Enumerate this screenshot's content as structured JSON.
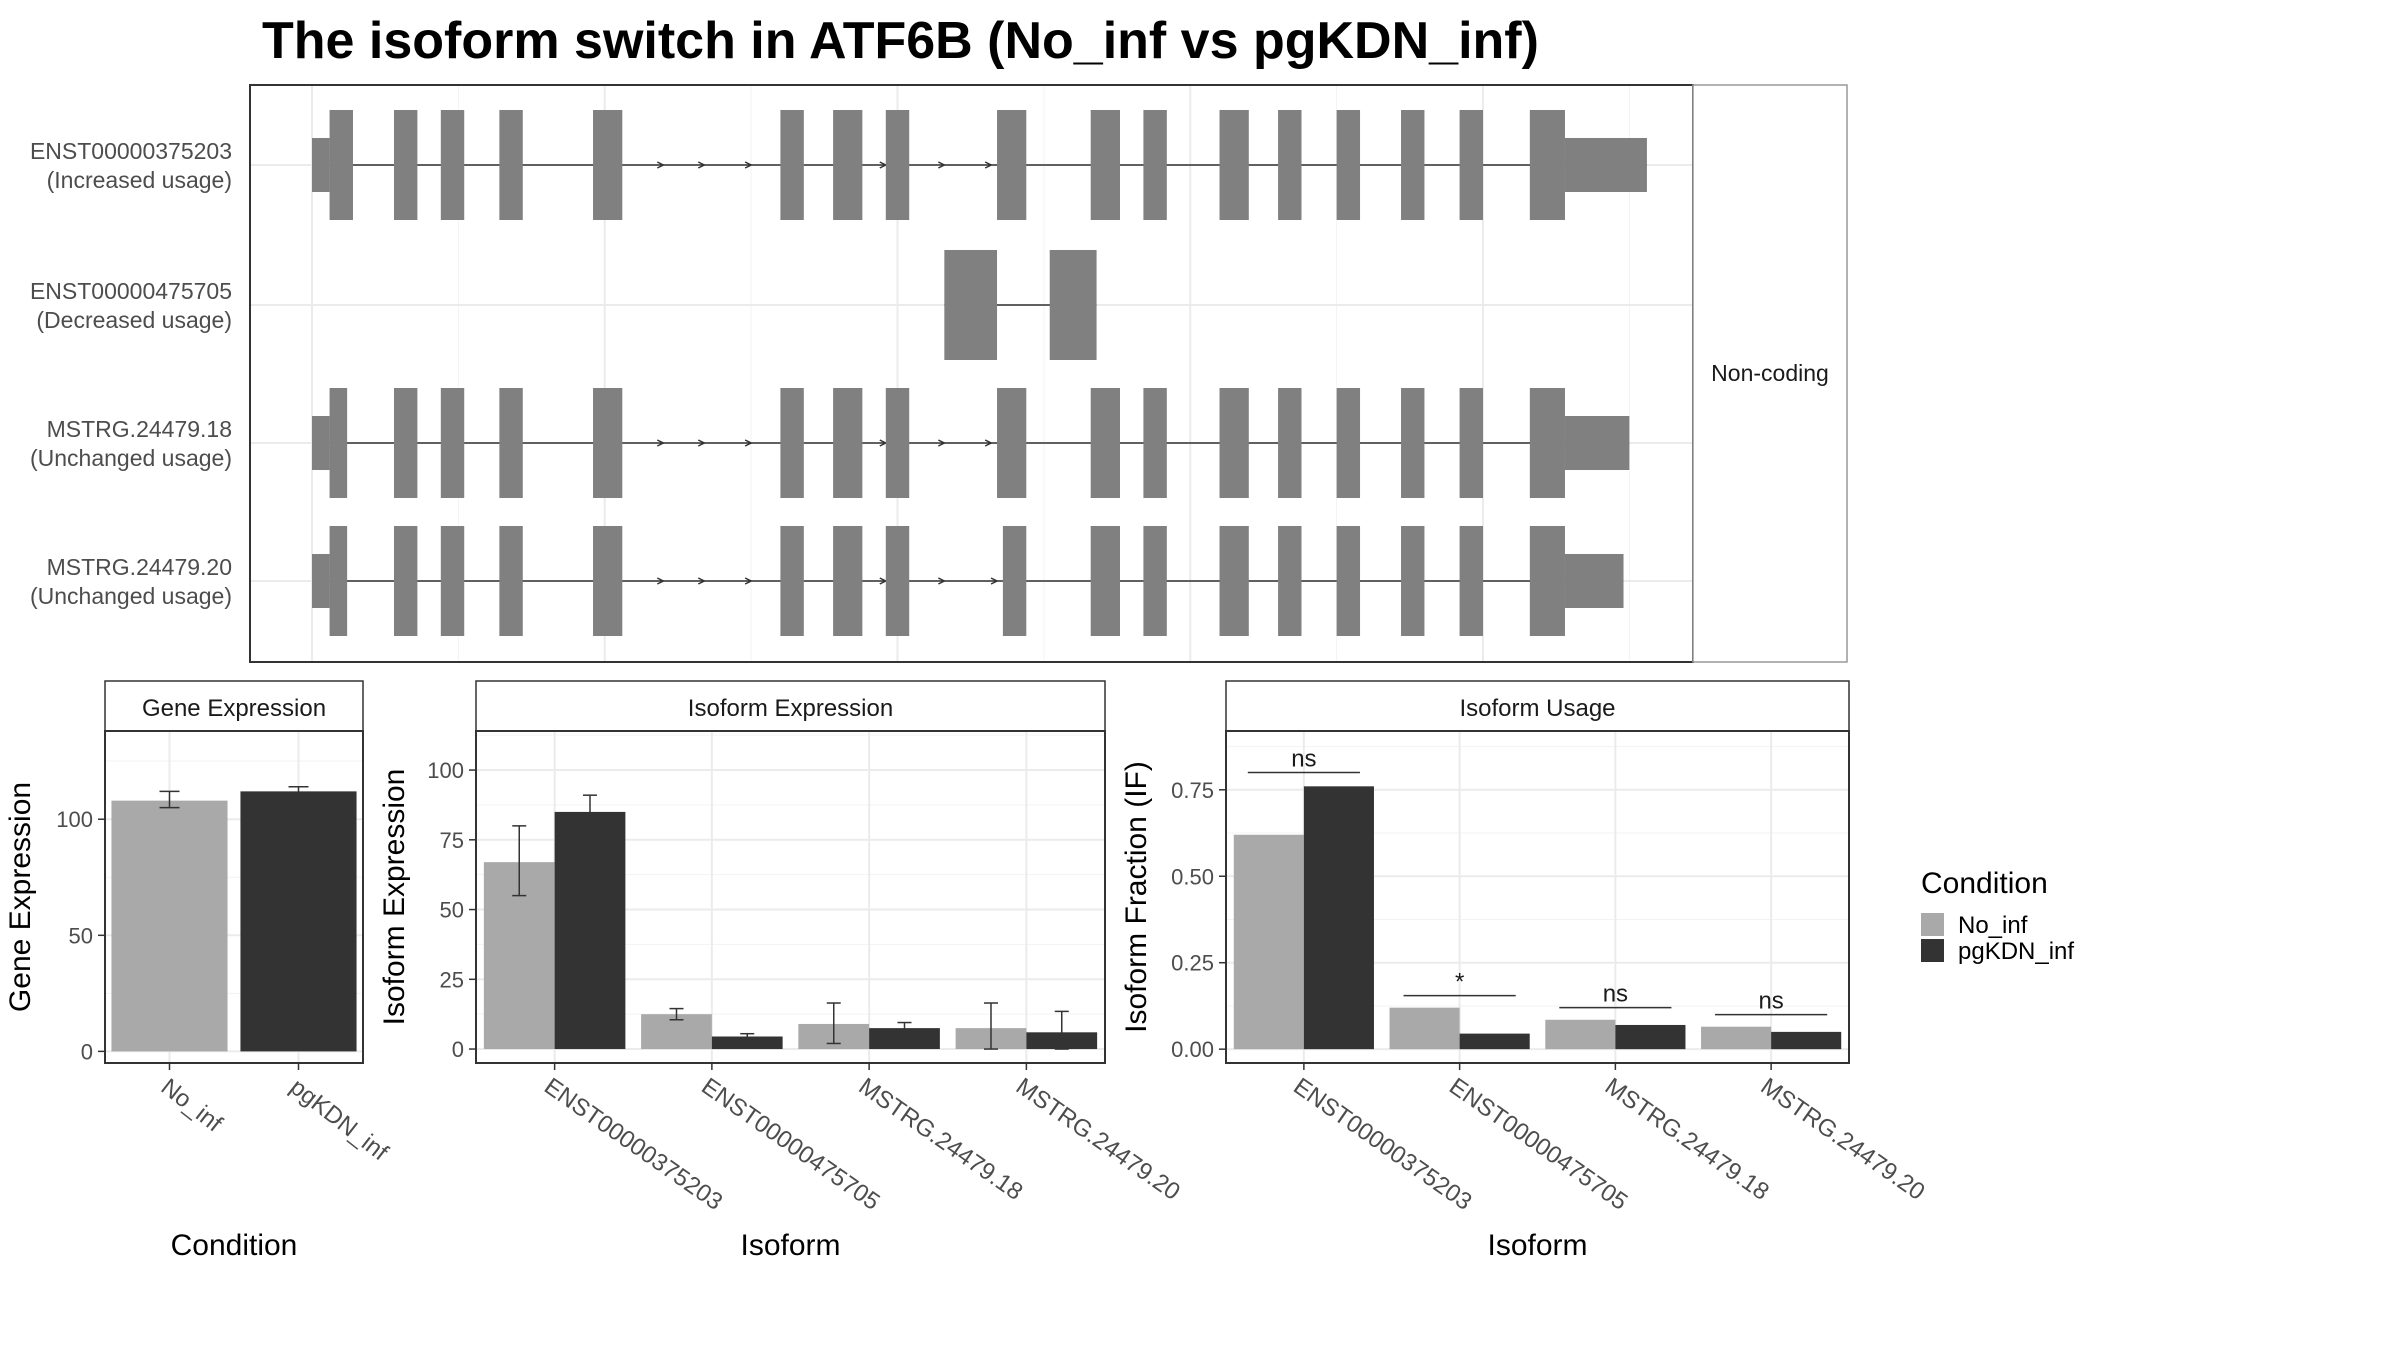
{
  "title": "The isoform switch in ATF6B (No_inf vs pgKDN_inf)",
  "colors": {
    "exon": "#808080",
    "no_inf": "#a9a9a9",
    "pgkdn_inf": "#333333",
    "grid": "#ebebeb",
    "panel_border": "#333333",
    "strip_border": "#999999"
  },
  "isoform_structure": {
    "isoforms": [
      {
        "id": "ENST00000375203",
        "usage": "(Increased usage)",
        "exons": [
          [
            0,
            3
          ],
          [
            3,
            7
          ],
          [
            14,
            18
          ],
          [
            22,
            26
          ],
          [
            32,
            36
          ],
          [
            48,
            53
          ],
          [
            80,
            84
          ],
          [
            89,
            94
          ],
          [
            98,
            102
          ],
          [
            117,
            122
          ],
          [
            133,
            138
          ],
          [
            142,
            146
          ],
          [
            155,
            160
          ],
          [
            165,
            169
          ],
          [
            175,
            179
          ],
          [
            186,
            190
          ],
          [
            196,
            200
          ],
          [
            208,
            214
          ],
          [
            214,
            228
          ]
        ],
        "utr": [
          [
            0,
            3
          ],
          [
            214,
            228
          ]
        ],
        "arrows": [
          60,
          67,
          75,
          98,
          108,
          116
        ]
      },
      {
        "id": "ENST00000475705",
        "usage": "(Decreased usage)",
        "exons": [
          [
            108,
            117
          ],
          [
            126,
            134
          ]
        ],
        "utr": [],
        "arrows": []
      },
      {
        "id": "MSTRG.24479.18",
        "usage": "(Unchanged usage)",
        "exons": [
          [
            0,
            3
          ],
          [
            3,
            6
          ],
          [
            14,
            18
          ],
          [
            22,
            26
          ],
          [
            32,
            36
          ],
          [
            48,
            53
          ],
          [
            80,
            84
          ],
          [
            89,
            94
          ],
          [
            98,
            102
          ],
          [
            117,
            122
          ],
          [
            133,
            138
          ],
          [
            142,
            146
          ],
          [
            155,
            160
          ],
          [
            165,
            169
          ],
          [
            175,
            179
          ],
          [
            186,
            190
          ],
          [
            196,
            200
          ],
          [
            208,
            214
          ],
          [
            214,
            225
          ]
        ],
        "utr": [
          [
            0,
            3
          ],
          [
            214,
            225
          ]
        ],
        "arrows": [
          60,
          67,
          75,
          98,
          108,
          116
        ]
      },
      {
        "id": "MSTRG.24479.20",
        "usage": "(Unchanged usage)",
        "exons": [
          [
            0,
            3
          ],
          [
            3,
            6
          ],
          [
            14,
            18
          ],
          [
            22,
            26
          ],
          [
            32,
            36
          ],
          [
            48,
            53
          ],
          [
            80,
            84
          ],
          [
            89,
            94
          ],
          [
            98,
            102
          ],
          [
            118,
            122
          ],
          [
            133,
            138
          ],
          [
            142,
            146
          ],
          [
            155,
            160
          ],
          [
            165,
            169
          ],
          [
            175,
            179
          ],
          [
            186,
            190
          ],
          [
            196,
            200
          ],
          [
            208,
            214
          ],
          [
            214,
            224
          ]
        ],
        "utr": [
          [
            0,
            3
          ],
          [
            214,
            224
          ]
        ],
        "arrows": [
          60,
          67,
          75,
          98,
          108,
          117
        ]
      }
    ],
    "strip_label": "Non-coding"
  },
  "legend": {
    "title": "Condition",
    "items": [
      {
        "label": "No_inf",
        "color": "#a9a9a9"
      },
      {
        "label": "pgKDN_inf",
        "color": "#333333"
      }
    ]
  },
  "chart_data": [
    {
      "type": "bar",
      "title": "Gene Expression",
      "xlabel": "Condition",
      "ylabel": "Gene Expression",
      "categories": [
        "No_inf",
        "pgKDN_inf"
      ],
      "values": [
        108,
        112
      ],
      "errors": [
        [
          105,
          112
        ],
        [
          110,
          114
        ]
      ],
      "colors": [
        "#a9a9a9",
        "#333333"
      ],
      "ylim": [
        -5,
        138
      ],
      "yticks": [
        0,
        50,
        100
      ],
      "ytick_labels": [
        "0",
        "50",
        "100"
      ]
    },
    {
      "type": "bar",
      "title": "Isoform Expression",
      "xlabel": "Isoform",
      "ylabel": "Isoform Expression",
      "categories": [
        "ENST00000375203",
        "ENST00000475705",
        "MSTRG.24479.18",
        "MSTRG.24479.20"
      ],
      "series": [
        {
          "name": "No_inf",
          "values": [
            67,
            12.5,
            9,
            7.5
          ],
          "errors": [
            [
              55,
              80
            ],
            [
              10.5,
              14.5
            ],
            [
              2,
              16.5
            ],
            [
              0,
              16.5
            ]
          ]
        },
        {
          "name": "pgKDN_inf",
          "values": [
            85,
            4.5,
            7.5,
            6
          ],
          "errors": [
            [
              80,
              91
            ],
            [
              3.5,
              5.5
            ],
            [
              5.5,
              9.5
            ],
            [
              0,
              13.5
            ]
          ]
        }
      ],
      "ylim": [
        -5,
        114
      ],
      "yticks": [
        0,
        25,
        50,
        75,
        100
      ],
      "ytick_labels": [
        "0",
        "25",
        "50",
        "75",
        "100"
      ]
    },
    {
      "type": "bar",
      "title": "Isoform Usage",
      "xlabel": "Isoform",
      "ylabel": "Isoform Fraction (IF)",
      "categories": [
        "ENST00000375203",
        "ENST00000475705",
        "MSTRG.24479.18",
        "MSTRG.24479.20"
      ],
      "series": [
        {
          "name": "No_inf",
          "values": [
            0.62,
            0.12,
            0.085,
            0.065
          ]
        },
        {
          "name": "pgKDN_inf",
          "values": [
            0.76,
            0.045,
            0.07,
            0.05
          ]
        }
      ],
      "significance": [
        {
          "label": "ns",
          "y": 0.8
        },
        {
          "label": "*",
          "y": 0.155
        },
        {
          "label": "ns",
          "y": 0.12
        },
        {
          "label": "ns",
          "y": 0.1
        }
      ],
      "ylim": [
        -0.04,
        0.92
      ],
      "yticks": [
        0,
        0.25,
        0.5,
        0.75
      ],
      "ytick_labels": [
        "0.00",
        "0.25",
        "0.50",
        "0.75"
      ]
    }
  ]
}
